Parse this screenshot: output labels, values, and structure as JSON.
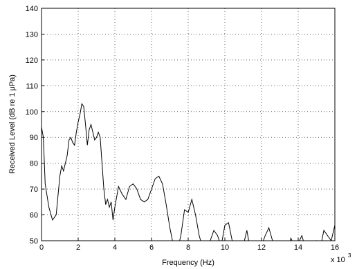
{
  "chart_data": {
    "type": "line",
    "xlabel": "Frequency (Hz)",
    "ylabel": "Received Level (dB re 1 μPa)",
    "x_multiplier": "x 10",
    "x_exponent": "3",
    "xlim": [
      0,
      16
    ],
    "xticks": [
      0,
      2,
      4,
      6,
      8,
      10,
      12,
      14,
      16
    ],
    "ylim": [
      50,
      140
    ],
    "yticks": [
      50,
      60,
      70,
      80,
      90,
      100,
      110,
      120,
      130,
      140
    ],
    "grid": true,
    "series": [
      {
        "color": "#000000",
        "x": [
          0,
          0.1,
          0.2,
          0.4,
          0.6,
          0.8,
          1.0,
          1.1,
          1.2,
          1.4,
          1.5,
          1.6,
          1.7,
          1.8,
          1.9,
          2.0,
          2.1,
          2.2,
          2.3,
          2.4,
          2.5,
          2.6,
          2.7,
          2.8,
          2.9,
          3.0,
          3.1,
          3.2,
          3.3,
          3.4,
          3.5,
          3.6,
          3.7,
          3.8,
          3.9,
          4.0,
          4.2,
          4.4,
          4.6,
          4.8,
          5.0,
          5.2,
          5.4,
          5.6,
          5.8,
          6.0,
          6.2,
          6.4,
          6.6,
          6.8,
          7.0,
          7.2,
          7.4,
          7.6,
          7.8,
          8.0,
          8.2,
          8.4,
          8.6,
          8.8,
          9.0,
          9.2,
          9.4,
          9.6,
          9.8,
          10.0,
          10.2,
          10.4,
          10.6,
          10.8,
          11.0,
          11.2,
          11.4,
          11.6,
          11.8,
          12.0,
          12.2,
          12.4,
          12.6,
          12.8,
          13.0,
          13.2,
          13.4,
          13.6,
          13.8,
          14.0,
          14.2,
          14.4,
          14.6,
          14.8,
          15.0,
          15.2,
          15.4,
          15.6,
          15.8,
          16.0
        ],
        "values": [
          94,
          90,
          72,
          63,
          58,
          60,
          75,
          79,
          77,
          83,
          89,
          90,
          88,
          87,
          92,
          96,
          99,
          103,
          102,
          95,
          87,
          93,
          95,
          92,
          89,
          90,
          92,
          90,
          80,
          70,
          64,
          66,
          63,
          65,
          58,
          63,
          71,
          68,
          66,
          71,
          72,
          70,
          66,
          65,
          66,
          70,
          74,
          75,
          72,
          64,
          55,
          48,
          46,
          52,
          62,
          61,
          66,
          60,
          52,
          47,
          45,
          50,
          54,
          52,
          48,
          56,
          57,
          50,
          46,
          45,
          48,
          54,
          46,
          44,
          45,
          48,
          52,
          55,
          50,
          47,
          45,
          48,
          46,
          51,
          48,
          49,
          52,
          47,
          45,
          48,
          50,
          47,
          54,
          52,
          50,
          56
        ]
      }
    ]
  }
}
